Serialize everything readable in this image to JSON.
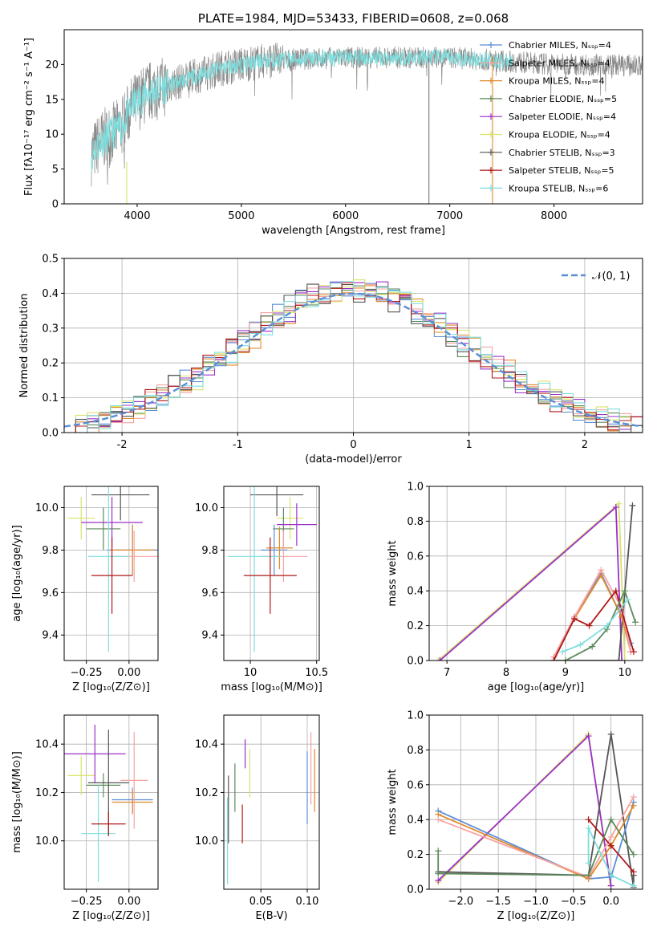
{
  "chart_data": [
    {
      "id": "spectrum",
      "type": "line",
      "title": "PLATE=1984, MJD=53433, FIBERID=0608, z=0.068",
      "xlabel": "wavelength [Angstrom, rest frame]",
      "ylabel": "Flux [fλ10⁻¹⁷ erg cm⁻² s⁻¹ A⁻¹]",
      "xlim": [
        3300,
        8850
      ],
      "ylim": [
        0,
        25
      ],
      "xticks": [
        4000,
        5000,
        6000,
        7000,
        8000
      ],
      "yticks": [
        0,
        5,
        10,
        15,
        20
      ],
      "legend_position": "top-right",
      "data_range": [
        3560,
        8850
      ],
      "continuum": [
        [
          3560,
          7
        ],
        [
          3650,
          9
        ],
        [
          3750,
          10
        ],
        [
          3850,
          11
        ],
        [
          3950,
          14
        ],
        [
          4100,
          16
        ],
        [
          4300,
          17
        ],
        [
          4500,
          18
        ],
        [
          4800,
          19.5
        ],
        [
          5200,
          20.5
        ],
        [
          5600,
          20.8
        ],
        [
          6000,
          21
        ],
        [
          6500,
          21
        ],
        [
          7000,
          21
        ],
        [
          7500,
          20.5
        ],
        [
          8000,
          20
        ],
        [
          8500,
          20
        ],
        [
          8850,
          19.8
        ]
      ],
      "series": [
        {
          "name": "Chabrier MILES, Nₛₛₚ=4",
          "color": "#5b8ed6",
          "marker": "plus"
        },
        {
          "name": "Salpeter MILES, Nₛₛₚ=4",
          "color": "#f7a3a3",
          "marker": "plus"
        },
        {
          "name": "Kroupa MILES, Nₛₛₚ=4",
          "color": "#e08a2c",
          "marker": "plus"
        },
        {
          "name": "Chabrier ELODIE, Nₛₛₚ=5",
          "color": "#5c8a5c",
          "marker": "plus"
        },
        {
          "name": "Salpeter ELODIE, Nₛₛₚ=4",
          "color": "#9b30c8",
          "marker": "plus"
        },
        {
          "name": "Kroupa ELODIE, Nₛₛₚ=4",
          "color": "#d9e36a",
          "marker": "plus"
        },
        {
          "name": "Chabrier STELIB, Nₛₛₚ=3",
          "color": "#555555",
          "marker": "plus"
        },
        {
          "name": "Salpeter STELIB, Nₛₛₚ=5",
          "color": "#b01818",
          "marker": "plus"
        },
        {
          "name": "Kroupa STELIB, Nₛₛₚ=6",
          "color": "#7fdede",
          "marker": "plus"
        }
      ],
      "spikes": [
        {
          "x": 3900,
          "ymin": 0,
          "ymax": 6,
          "color": "#d9e36a"
        },
        {
          "x": 6800,
          "ymin": 0,
          "ymax": 21,
          "color": "#777777"
        },
        {
          "x": 7410,
          "ymin": 0,
          "ymax": 21,
          "color": "#e08a2c"
        }
      ]
    },
    {
      "id": "residuals",
      "type": "histogram",
      "xlabel": "(data-model)/error",
      "ylabel": "Normed distribution",
      "xlim": [
        -2.5,
        2.5
      ],
      "ylim": [
        0,
        0.5
      ],
      "xticks": [
        -2,
        -1,
        0,
        1,
        2
      ],
      "yticks": [
        0.0,
        0.1,
        0.2,
        0.3,
        0.4,
        0.5
      ],
      "grid": true,
      "legend_position": "top-right",
      "legend": "𝒩(0, 1)",
      "gaussian": {
        "mean": 0,
        "sigma": 1,
        "color": "#5b8ed6"
      },
      "bin_width": 0.1
    },
    {
      "id": "age_vs_Z",
      "type": "errorbar",
      "xlabel": "Z [log₁₀(Z/Z⊙)]",
      "ylabel": "age  [log₁₀(age/yr)]",
      "xlim": [
        -0.38,
        0.17
      ],
      "ylim": [
        9.28,
        10.1
      ],
      "xticks": [
        -0.25,
        0.0
      ],
      "xticklabels": [
        "−0.25",
        "0.00"
      ],
      "yticks": [
        9.4,
        9.6,
        9.8,
        10.0
      ],
      "grid": true,
      "points": [
        {
          "x": -0.28,
          "xerr": 0.08,
          "y": 9.95,
          "yerr": 0.1,
          "color": "#d9e36a"
        },
        {
          "x": -0.15,
          "xerr": 0.1,
          "y": 9.9,
          "yerr": 0.1,
          "color": "#5c8a5c"
        },
        {
          "x": -0.1,
          "xerr": 0.18,
          "y": 9.93,
          "yerr": 0.12,
          "color": "#9b30c8"
        },
        {
          "x": -0.05,
          "xerr": 0.17,
          "y": 10.06,
          "yerr": 0.12,
          "color": "#555555"
        },
        {
          "x": 0.02,
          "xerr": 0.15,
          "y": 9.8,
          "yerr": 0.12,
          "color": "#5b8ed6"
        },
        {
          "x": 0.02,
          "xerr": 0.13,
          "y": 9.8,
          "yerr": 0.12,
          "color": "#e08a2c"
        },
        {
          "x": 0.03,
          "xerr": 0.15,
          "y": 9.77,
          "yerr": 0.12,
          "color": "#f7a3a3"
        },
        {
          "x": -0.12,
          "xerr": 0.12,
          "y": 9.77,
          "yerr": 0.45,
          "color": "#7fdede"
        },
        {
          "x": -0.1,
          "xerr": 0.12,
          "y": 9.68,
          "yerr": 0.18,
          "color": "#b01818"
        }
      ]
    },
    {
      "id": "age_vs_mass",
      "type": "errorbar",
      "xlabel": "mass [log₁₀(M/M⊙)]",
      "ylabel": "",
      "xlim": [
        9.8,
        10.52
      ],
      "ylim": [
        9.28,
        10.1
      ],
      "xticks": [
        10.0,
        10.5
      ],
      "yticks": [
        9.4,
        9.6,
        9.8,
        10.0
      ],
      "grid": true,
      "points": [
        {
          "x": 10.3,
          "xerr": 0.1,
          "y": 9.95,
          "yerr": 0.1,
          "color": "#d9e36a"
        },
        {
          "x": 10.25,
          "xerr": 0.08,
          "y": 9.9,
          "yerr": 0.1,
          "color": "#5c8a5c"
        },
        {
          "x": 10.35,
          "xerr": 0.15,
          "y": 9.92,
          "yerr": 0.1,
          "color": "#9b30c8"
        },
        {
          "x": 10.2,
          "xerr": 0.2,
          "y": 10.06,
          "yerr": 0.1,
          "color": "#555555"
        },
        {
          "x": 10.18,
          "xerr": 0.1,
          "y": 9.8,
          "yerr": 0.12,
          "color": "#5b8ed6"
        },
        {
          "x": 10.22,
          "xerr": 0.1,
          "y": 9.81,
          "yerr": 0.1,
          "color": "#e08a2c"
        },
        {
          "x": 10.25,
          "xerr": 0.18,
          "y": 9.77,
          "yerr": 0.12,
          "color": "#f7a3a3"
        },
        {
          "x": 10.03,
          "xerr": 0.2,
          "y": 9.77,
          "yerr": 0.45,
          "color": "#7fdede"
        },
        {
          "x": 10.15,
          "xerr": 0.2,
          "y": 9.68,
          "yerr": 0.18,
          "color": "#b01818"
        }
      ]
    },
    {
      "id": "weight_vs_age",
      "type": "line",
      "xlabel": "age  [log₁₀(age/yr)]",
      "ylabel": "mass weight",
      "xlim": [
        6.7,
        10.3
      ],
      "ylim": [
        0,
        1
      ],
      "xticks": [
        7,
        8,
        9,
        10
      ],
      "yticks": [
        0.0,
        0.2,
        0.4,
        0.6,
        0.8,
        1.0
      ],
      "grid": true,
      "series": [
        {
          "color": "#d9e36a",
          "x": [
            6.85,
            9.9,
            10.0
          ],
          "y": [
            0.0,
            0.9,
            0.0
          ]
        },
        {
          "color": "#9b30c8",
          "x": [
            6.88,
            9.85,
            9.95
          ],
          "y": [
            0.0,
            0.88,
            0.0
          ]
        },
        {
          "color": "#555555",
          "x": [
            8.8,
            9.9,
            10.13
          ],
          "y": [
            0.0,
            0.0,
            0.89
          ]
        },
        {
          "color": "#5b8ed6",
          "x": [
            8.8,
            9.15,
            9.6,
            9.95,
            10.1
          ],
          "y": [
            0.0,
            0.25,
            0.5,
            0.25,
            0.1
          ]
        },
        {
          "color": "#e08a2c",
          "x": [
            8.8,
            9.15,
            9.6,
            9.95,
            10.1
          ],
          "y": [
            0.0,
            0.24,
            0.49,
            0.25,
            0.05
          ]
        },
        {
          "color": "#f7a3a3",
          "x": [
            8.8,
            9.15,
            9.6,
            9.95,
            10.1
          ],
          "y": [
            0.02,
            0.25,
            0.52,
            0.3,
            0.05
          ]
        },
        {
          "color": "#b01818",
          "x": [
            8.8,
            9.15,
            9.4,
            9.85,
            10.15
          ],
          "y": [
            0.0,
            0.24,
            0.2,
            0.4,
            0.05
          ]
        },
        {
          "color": "#5c8a5c",
          "x": [
            9.0,
            9.45,
            9.7,
            10.0,
            10.18
          ],
          "y": [
            0.0,
            0.08,
            0.18,
            0.4,
            0.22
          ]
        },
        {
          "color": "#7fdede",
          "x": [
            8.95,
            9.25,
            9.7,
            10.05
          ],
          "y": [
            0.05,
            0.09,
            0.2,
            0.35
          ]
        }
      ]
    },
    {
      "id": "mass_vs_Z",
      "type": "errorbar",
      "xlabel": "Z [log₁₀(Z/Z⊙)]",
      "ylabel": "mass [log₁₀(M/M⊙)]",
      "xlim": [
        -0.38,
        0.17
      ],
      "ylim": [
        9.8,
        10.52
      ],
      "xticks": [
        -0.25,
        0.0
      ],
      "xticklabels": [
        "−0.25",
        "0.00"
      ],
      "yticks": [
        10.0,
        10.2,
        10.4
      ],
      "grid": true,
      "points": [
        {
          "x": -0.28,
          "xerr": 0.08,
          "y": 10.27,
          "yerr": 0.08,
          "color": "#d9e36a"
        },
        {
          "x": -0.15,
          "xerr": 0.1,
          "y": 10.23,
          "yerr": 0.05,
          "color": "#5c8a5c"
        },
        {
          "x": -0.2,
          "xerr": 0.18,
          "y": 10.36,
          "yerr": 0.12,
          "color": "#9b30c8"
        },
        {
          "x": -0.12,
          "xerr": 0.12,
          "y": 10.24,
          "yerr": 0.22,
          "color": "#555555"
        },
        {
          "x": 0.02,
          "xerr": 0.12,
          "y": 10.17,
          "yerr": 0.05,
          "color": "#5b8ed6"
        },
        {
          "x": 0.02,
          "xerr": 0.12,
          "y": 10.16,
          "yerr": 0.05,
          "color": "#e08a2c"
        },
        {
          "x": 0.03,
          "xerr": 0.08,
          "y": 10.25,
          "yerr": 0.2,
          "color": "#f7a3a3"
        },
        {
          "x": -0.18,
          "xerr": 0.1,
          "y": 10.03,
          "yerr": 0.2,
          "color": "#7fdede"
        },
        {
          "x": -0.12,
          "xerr": 0.1,
          "y": 10.07,
          "yerr": 0.05,
          "color": "#b01818"
        }
      ]
    },
    {
      "id": "mass_vs_ebv",
      "type": "errorbar",
      "xlabel": "E(B-V)",
      "ylabel": "",
      "xlim": [
        0.01,
        0.113
      ],
      "ylim": [
        9.8,
        10.52
      ],
      "xticks": [
        0.05,
        0.1
      ],
      "xticklabels": [
        "0.05",
        "0.10"
      ],
      "yticks": [
        10.0,
        10.2,
        10.4
      ],
      "grid": true,
      "points": [
        {
          "x": 0.014,
          "y": 10.0,
          "yerr": 0.18,
          "color": "#7fdede"
        },
        {
          "x": 0.015,
          "y": 10.13,
          "yerr": 0.14,
          "color": "#555555"
        },
        {
          "x": 0.022,
          "y": 10.22,
          "yerr": 0.1,
          "color": "#5c8a5c"
        },
        {
          "x": 0.03,
          "y": 10.07,
          "yerr": 0.08,
          "color": "#b01818"
        },
        {
          "x": 0.033,
          "y": 10.36,
          "yerr": 0.06,
          "color": "#9b30c8"
        },
        {
          "x": 0.038,
          "y": 10.28,
          "yerr": 0.1,
          "color": "#d9e36a"
        },
        {
          "x": 0.1,
          "y": 10.22,
          "yerr": 0.15,
          "color": "#5b8ed6"
        },
        {
          "x": 0.104,
          "y": 10.3,
          "yerr": 0.15,
          "color": "#f7a3a3"
        },
        {
          "x": 0.108,
          "y": 10.25,
          "yerr": 0.13,
          "color": "#e08a2c"
        }
      ]
    },
    {
      "id": "weight_vs_Z",
      "type": "line",
      "xlabel": "Z [log₁₀(Z/Z⊙)]",
      "ylabel": "mass weight",
      "xlim": [
        -2.42,
        0.42
      ],
      "ylim": [
        0,
        1
      ],
      "xticks": [
        -2.0,
        -1.5,
        -1.0,
        -0.5,
        0.0
      ],
      "xticklabels": [
        "−2.0",
        "−1.5",
        "−1.0",
        "−0.5",
        "0.0"
      ],
      "yticks": [
        0.0,
        0.2,
        0.4,
        0.6,
        0.8,
        1.0
      ],
      "grid": true,
      "series": [
        {
          "color": "#d9e36a",
          "x": [
            -2.3,
            -0.3,
            0.0
          ],
          "y": [
            0.04,
            0.89,
            0.0
          ]
        },
        {
          "color": "#9b30c8",
          "x": [
            -2.3,
            -0.3,
            0.0
          ],
          "y": [
            0.05,
            0.88,
            0.02
          ]
        },
        {
          "color": "#555555",
          "x": [
            -2.3,
            -0.3,
            0.0,
            0.3,
            0.3
          ],
          "y": [
            0.1,
            0.08,
            0.89,
            0.01,
            0.08
          ]
        },
        {
          "color": "#5b8ed6",
          "x": [
            -2.3,
            -0.3,
            0.0,
            0.3
          ],
          "y": [
            0.45,
            0.06,
            0.07,
            0.5
          ]
        },
        {
          "color": "#e08a2c",
          "x": [
            -2.3,
            -0.3,
            0.0,
            0.3
          ],
          "y": [
            0.43,
            0.06,
            0.25,
            0.48
          ]
        },
        {
          "color": "#f7a3a3",
          "x": [
            -2.3,
            -0.3,
            0.0,
            0.3
          ],
          "y": [
            0.4,
            0.07,
            0.3,
            0.53
          ]
        },
        {
          "color": "#b01818",
          "x": [
            -0.3,
            0.0,
            0.3
          ],
          "y": [
            0.4,
            0.25,
            0.1
          ]
        },
        {
          "color": "#5c8a5c",
          "x": [
            -2.3,
            -2.3,
            -0.3,
            0.0,
            0.3
          ],
          "y": [
            0.22,
            0.09,
            0.08,
            0.4,
            0.2
          ]
        },
        {
          "color": "#7fdede",
          "x": [
            -0.3,
            -0.3,
            0.0,
            0.3
          ],
          "y": [
            0.15,
            0.35,
            0.08,
            0.02
          ]
        }
      ]
    }
  ]
}
